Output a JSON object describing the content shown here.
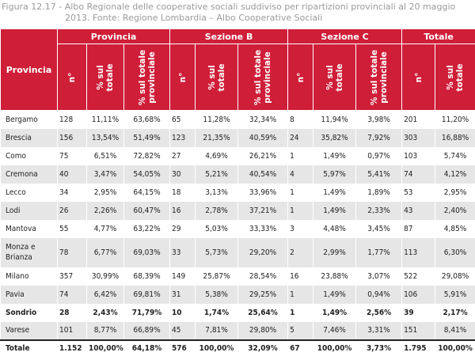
{
  "caption": {
    "line1": "Figura 12.17 - Albo Regionale delle cooperative sociali suddiviso per ripartizioni provinciali al 20 maggio",
    "line2": "2013. Fonte: Regione Lombardia – Albo Cooperative Sociali"
  },
  "header": {
    "row_label": "Provincia",
    "groups": [
      "Provincia",
      "Sezione B",
      "Sezione C",
      "Totale"
    ],
    "sub": {
      "n": "n°",
      "sul_totale": "% sul\ntotale",
      "sul_totale_prov": "% sul totale\nprovinciale"
    }
  },
  "rows": [
    {
      "name": "Bergamo",
      "p": [
        "128",
        "11,11%",
        "63,68%"
      ],
      "b": [
        "65",
        "11,28%",
        "32,34%"
      ],
      "c": [
        "8",
        "11,94%",
        "3,98%"
      ],
      "t": [
        "201",
        "11,20%"
      ]
    },
    {
      "name": "Brescia",
      "p": [
        "156",
        "13,54%",
        "51,49%"
      ],
      "b": [
        "123",
        "21,35%",
        "40,59%"
      ],
      "c": [
        "24",
        "35,82%",
        "7,92%"
      ],
      "t": [
        "303",
        "16,88%"
      ]
    },
    {
      "name": "Como",
      "p": [
        "75",
        "6,51%",
        "72,82%"
      ],
      "b": [
        "27",
        "4,69%",
        "26,21%"
      ],
      "c": [
        "1",
        "1,49%",
        "0,97%"
      ],
      "t": [
        "103",
        "5,74%"
      ]
    },
    {
      "name": "Cremona",
      "p": [
        "40",
        "3,47%",
        "54,05%"
      ],
      "b": [
        "30",
        "5,21%",
        "40,54%"
      ],
      "c": [
        "4",
        "5,97%",
        "5,41%"
      ],
      "t": [
        "74",
        "4,12%"
      ]
    },
    {
      "name": "Lecco",
      "p": [
        "34",
        "2,95%",
        "64,15%"
      ],
      "b": [
        "18",
        "3,13%",
        "33,96%"
      ],
      "c": [
        "1",
        "1,49%",
        "1,89%"
      ],
      "t": [
        "53",
        "2,95%"
      ]
    },
    {
      "name": "Lodi",
      "p": [
        "26",
        "2,26%",
        "60,47%"
      ],
      "b": [
        "16",
        "2,78%",
        "37,21%"
      ],
      "c": [
        "1",
        "1,49%",
        "2,33%"
      ],
      "t": [
        "43",
        "2,40%"
      ]
    },
    {
      "name": "Mantova",
      "p": [
        "55",
        "4,77%",
        "63,22%"
      ],
      "b": [
        "29",
        "5,03%",
        "33,33%"
      ],
      "c": [
        "3",
        "4,48%",
        "3,45%"
      ],
      "t": [
        "87",
        "4,85%"
      ]
    },
    {
      "name": "Monza e Brianza",
      "p": [
        "78",
        "6,77%",
        "69,03%"
      ],
      "b": [
        "33",
        "5,73%",
        "29,20%"
      ],
      "c": [
        "2",
        "2,99%",
        "1,77%"
      ],
      "t": [
        "113",
        "6,30%"
      ]
    },
    {
      "name": "Milano",
      "p": [
        "357",
        "30,99%",
        "68,39%"
      ],
      "b": [
        "149",
        "25,87%",
        "28,54%"
      ],
      "c": [
        "16",
        "23,88%",
        "3,07%"
      ],
      "t": [
        "522",
        "29,08%"
      ]
    },
    {
      "name": "Pavia",
      "p": [
        "74",
        "6,42%",
        "69,81%"
      ],
      "b": [
        "31",
        "5,38%",
        "29,25%"
      ],
      "c": [
        "1",
        "1,49%",
        "0,94%"
      ],
      "t": [
        "106",
        "5,91%"
      ]
    },
    {
      "name": "Sondrio",
      "p": [
        "28",
        "2,43%",
        "71,79%"
      ],
      "b": [
        "10",
        "1,74%",
        "25,64%"
      ],
      "c": [
        "1",
        "1,49%",
        "2,56%"
      ],
      "t": [
        "39",
        "2,17%"
      ]
    },
    {
      "name": "Varese",
      "p": [
        "101",
        "8,77%",
        "66,89%"
      ],
      "b": [
        "45",
        "7,81%",
        "29,80%"
      ],
      "c": [
        "5",
        "7,46%",
        "3,31%"
      ],
      "t": [
        "151",
        "8,41%"
      ]
    },
    {
      "name": "Totale",
      "p": [
        "1.152",
        "100,00%",
        "64,18%"
      ],
      "b": [
        "576",
        "100,00%",
        "32,09%"
      ],
      "c": [
        "67",
        "100,00%",
        "3,73%"
      ],
      "t": [
        "1.795",
        "100,00%"
      ]
    }
  ]
}
